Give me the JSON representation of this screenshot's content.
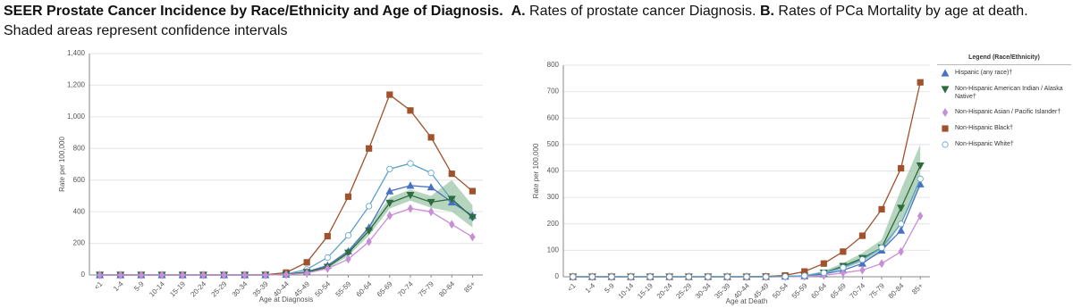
{
  "caption": {
    "title": "SEER Prostate Cancer Incidence by Race/Ethnicity and Age of Diagnosis.",
    "part_a_label": "A.",
    "part_a": "Rates of prostate cancer Diagnosis.",
    "part_b_label": "B.",
    "part_b": "Rates of PCa Mortality by age at death.",
    "note": "Shaded areas represent confidence intervals"
  },
  "chart_data": [
    {
      "type": "line",
      "x_label": "Age at Diagnosis",
      "y_label": "Rate per 100,000",
      "grid": true,
      "categories": [
        "<1",
        "1-4",
        "5-9",
        "10-14",
        "15-19",
        "20-24",
        "25-29",
        "30-34",
        "35-39",
        "40-44",
        "45-49",
        "50-54",
        "55-59",
        "60-64",
        "65-69",
        "70-74",
        "75-79",
        "80-84",
        "85+"
      ],
      "ylim": [
        0,
        1400
      ],
      "yticks": [
        0,
        200,
        400,
        600,
        800,
        {
          "value": 1000,
          "label": "1,000"
        },
        {
          "value": 1200,
          "label": "1,200"
        },
        {
          "value": 1400,
          "label": "1,400"
        }
      ],
      "series": [
        {
          "color": "#a0522d",
          "marker": "square",
          "values": [
            0,
            0,
            0,
            0,
            0,
            0,
            0,
            0,
            1,
            15,
            80,
            245,
            495,
            800,
            1140,
            1040,
            870,
            640,
            530
          ]
        },
        {
          "color": "#5aa0c8",
          "marker": "circle-open",
          "values": [
            0,
            0,
            0,
            0,
            0,
            0,
            0,
            0,
            0,
            5,
            35,
            110,
            250,
            435,
            670,
            705,
            645,
            475,
            365
          ]
        },
        {
          "color": "#4a72c4",
          "marker": "triangle-up",
          "values": [
            0,
            0,
            0,
            0,
            0,
            0,
            0,
            0,
            0,
            3,
            20,
            60,
            150,
            300,
            530,
            565,
            555,
            460,
            375
          ]
        },
        {
          "color": "#2e6b3e",
          "marker": "triangle-down",
          "ci_color": "#9cc7a8",
          "values": [
            0,
            0,
            0,
            0,
            0,
            0,
            0,
            0,
            0,
            3,
            18,
            50,
            140,
            280,
            455,
            505,
            460,
            480,
            365
          ],
          "lower": [
            0,
            0,
            0,
            0,
            0,
            0,
            0,
            0,
            0,
            1,
            12,
            38,
            120,
            250,
            420,
            470,
            425,
            400,
            300
          ],
          "upper": [
            0,
            0,
            0,
            0,
            0,
            0,
            0,
            0,
            0,
            6,
            25,
            62,
            160,
            310,
            490,
            540,
            500,
            600,
            440
          ]
        },
        {
          "color": "#c78fd6",
          "marker": "diamond",
          "values": [
            0,
            0,
            0,
            0,
            0,
            0,
            0,
            0,
            0,
            2,
            12,
            40,
            100,
            210,
            375,
            420,
            400,
            320,
            240
          ]
        }
      ]
    },
    {
      "type": "line",
      "x_label": "Age at Death",
      "y_label": "Rate per 100,000",
      "grid": true,
      "legend": "right",
      "legend_title": "Legend (Race/Ethnicity)",
      "categories": [
        "<1",
        "1-4",
        "5-9",
        "10-14",
        "15-19",
        "20-24",
        "25-29",
        "30-34",
        "35-39",
        "40-44",
        "45-49",
        "50-54",
        "55-59",
        "60-64",
        "65-69",
        "70-74",
        "75-79",
        "80-84",
        "85+"
      ],
      "ylim": [
        0,
        800
      ],
      "yticks": [
        0,
        100,
        200,
        300,
        400,
        500,
        600,
        700,
        800
      ],
      "series": [
        {
          "name": "Hispanic (any race)†",
          "color": "#4a72c4",
          "marker": "triangle-up",
          "values": [
            0,
            0,
            0,
            0,
            0,
            0,
            0,
            0,
            0,
            0,
            0,
            1,
            3,
            10,
            25,
            50,
            100,
            175,
            350
          ]
        },
        {
          "name": "Non-Hispanic American Indian / Alaska Native†",
          "color": "#2e6b3e",
          "marker": "triangle-down",
          "ci_color": "#9cc7a8",
          "values": [
            0,
            0,
            0,
            0,
            0,
            0,
            0,
            0,
            0,
            0,
            0,
            1,
            3,
            15,
            40,
            70,
            110,
            260,
            420
          ],
          "lower": [
            0,
            0,
            0,
            0,
            0,
            0,
            0,
            0,
            0,
            0,
            0,
            0,
            1,
            10,
            30,
            55,
            90,
            200,
            340
          ],
          "upper": [
            0,
            0,
            0,
            0,
            0,
            0,
            0,
            0,
            0,
            0,
            0,
            2,
            6,
            22,
            52,
            90,
            140,
            330,
            500
          ]
        },
        {
          "name": "Non-Hispanic Asian / Pacific Islander†",
          "color": "#c78fd6",
          "marker": "diamond",
          "values": [
            0,
            0,
            0,
            0,
            0,
            0,
            0,
            0,
            0,
            0,
            0,
            0,
            1,
            5,
            15,
            25,
            50,
            95,
            230
          ]
        },
        {
          "name": "Non-Hispanic Black†",
          "color": "#a0522d",
          "marker": "square",
          "values": [
            0,
            0,
            0,
            0,
            0,
            0,
            0,
            0,
            0,
            0,
            1,
            5,
            20,
            50,
            95,
            155,
            255,
            410,
            735
          ]
        },
        {
          "name": "Non-Hispanic White†",
          "color": "#5aa0c8",
          "marker": "circle-open",
          "values": [
            0,
            0,
            0,
            0,
            0,
            0,
            0,
            0,
            0,
            0,
            0,
            1,
            4,
            15,
            35,
            65,
            110,
            200,
            370
          ]
        }
      ]
    }
  ]
}
